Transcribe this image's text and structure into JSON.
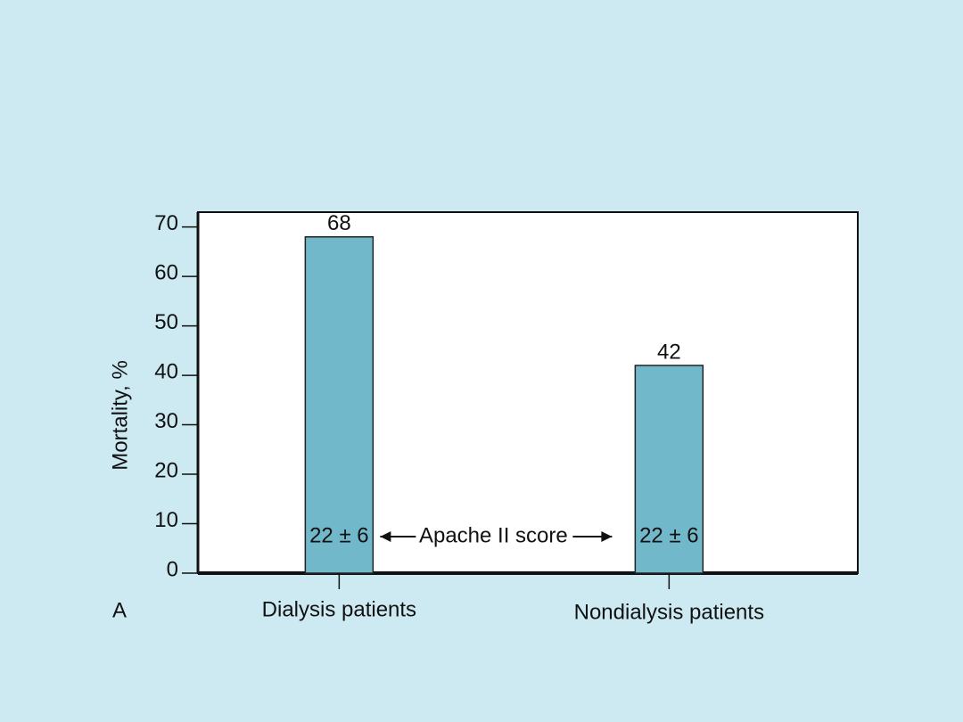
{
  "chart_data": {
    "type": "bar",
    "panel_label": "A",
    "y_label": "Mortality, %",
    "categories": [
      "Dialysis patients",
      "Nondialysis patients"
    ],
    "values": [
      68,
      42
    ],
    "color": "#72b8cb",
    "ylim": [
      0,
      73
    ],
    "yticks": [
      0,
      10,
      20,
      30,
      40,
      50,
      60,
      70
    ],
    "bar_annotations": [
      "22 ± 6",
      "22 ± 6"
    ],
    "comparison_label": "Apache II score"
  }
}
